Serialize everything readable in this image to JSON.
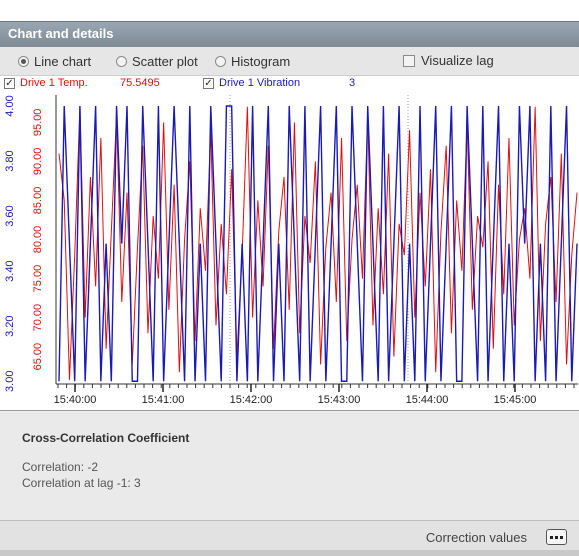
{
  "panel": {
    "title": "Chart and details"
  },
  "modes": {
    "line": "Line chart",
    "scatter": "Scatter plot",
    "histogram": "Histogram",
    "selected": "line",
    "visualize_lag": "Visualize lag"
  },
  "legend": [
    {
      "name": "Drive 1 Temp.",
      "value": "75.5495",
      "checked": "✓",
      "color": "#e01010"
    },
    {
      "name": "Drive 1 Vibration",
      "value": "3",
      "checked": "✓",
      "color": "#1a1ab4"
    }
  ],
  "chart_data": {
    "type": "line",
    "x_ticks": [
      "15:40:00",
      "15:41:00",
      "15:42:00",
      "15:43:00",
      "15:44:00",
      "15:45:00"
    ],
    "y_left_ticks": [
      "3.00",
      "3.20",
      "3.40",
      "3.60",
      "3.80",
      "4.00"
    ],
    "y_right_ticks": [
      "65.00",
      "70.00",
      "75.00",
      "80.00",
      "85.00",
      "90.00",
      "95.00"
    ],
    "y_left_range": [
      2.99,
      4.04
    ],
    "y_right_range": [
      61.5,
      98.5
    ],
    "series": [
      {
        "name": "Drive 1 Temp.",
        "color": "#e01010",
        "axis": "right",
        "values": [
          91,
          85,
          62,
          78,
          97,
          70,
          88,
          74,
          93,
          66,
          81,
          96,
          72,
          86,
          64,
          79,
          92,
          68,
          83,
          75,
          95,
          71,
          87,
          63,
          80,
          90,
          67,
          84,
          76,
          94,
          69,
          82,
          73,
          89,
          65,
          78,
          97,
          70,
          85,
          74,
          92,
          66,
          81,
          88,
          71,
          95,
          68,
          83,
          77,
          90,
          64,
          79,
          86,
          72,
          93,
          67,
          80,
          87,
          75,
          96,
          69,
          84,
          73,
          91,
          65,
          82,
          78,
          94,
          70,
          86,
          74,
          89,
          63,
          81,
          92,
          68,
          85,
          76,
          95,
          71,
          83,
          79,
          90,
          66,
          87,
          73,
          93,
          69,
          80,
          84,
          75,
          97,
          67,
          82,
          88,
          72,
          91,
          64,
          78,
          86
        ]
      },
      {
        "name": "Drive 1 Vibration",
        "color": "#1a1ab4",
        "axis": "left",
        "values": [
          3,
          4,
          3.5,
          3,
          4,
          3,
          3.5,
          4,
          3,
          3.5,
          3,
          4,
          3.5,
          4,
          3,
          3,
          4,
          3.5,
          3,
          4,
          3,
          3.5,
          4,
          3.5,
          3,
          4,
          3,
          3.5,
          3,
          4,
          3.5,
          3,
          4,
          4,
          3,
          3.5,
          3,
          4,
          3,
          3.5,
          4,
          3,
          3.5,
          3,
          4,
          3.5,
          3,
          4,
          3,
          3.5,
          4,
          3,
          3.5,
          4,
          3,
          3,
          4,
          3.5,
          3,
          4,
          3.5,
          3,
          4,
          3,
          3.5,
          4,
          3,
          3.5,
          3,
          4,
          3,
          3.5,
          4,
          3,
          3.5,
          4,
          3,
          3,
          4,
          3.5,
          3,
          4,
          3,
          3.5,
          4,
          3,
          3.5,
          3,
          4,
          3.5,
          4,
          3,
          3.5,
          3,
          4,
          3,
          3.5,
          4,
          3,
          3.5
        ]
      }
    ]
  },
  "details": {
    "heading": "Cross-Correlation Coefficient",
    "correlation": "Correlation: -2",
    "correlation_lag": "Correlation at lag -1: 3"
  },
  "footer": {
    "label": "Correction values"
  }
}
